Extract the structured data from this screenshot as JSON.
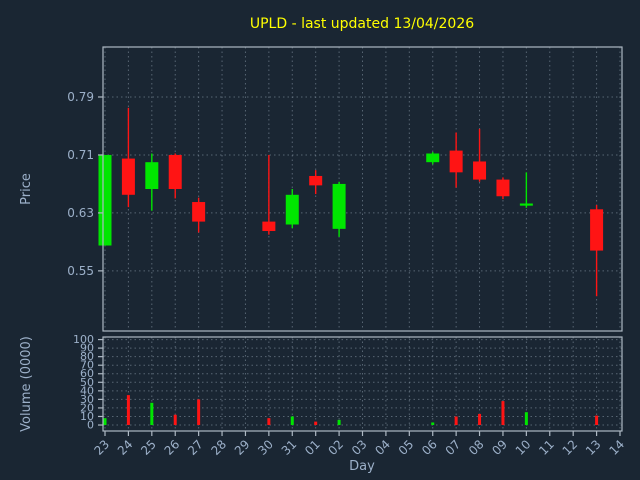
{
  "chart_data": {
    "type": "candlestick",
    "title": "UPLD - last updated 13/04/2026",
    "xlabel": "Day",
    "grid": true,
    "legend": "none",
    "price_axis": {
      "label": "Price",
      "ticks": [
        0.55,
        0.63,
        0.71,
        0.79
      ],
      "min": 0.467,
      "max": 0.859
    },
    "volume_axis": {
      "label": "Volume (0000)",
      "ticks": [
        0,
        10,
        20,
        30,
        40,
        50,
        60,
        70,
        80,
        90,
        100
      ],
      "min": -7,
      "max": 103
    },
    "x_labels": [
      "23",
      "24",
      "25",
      "26",
      "27",
      "28",
      "29",
      "30",
      "31",
      "01",
      "02",
      "03",
      "04",
      "05",
      "06",
      "07",
      "08",
      "09",
      "10",
      "11",
      "12",
      "13",
      "14"
    ],
    "colors": {
      "background": "#1a2633",
      "up": "#00e600",
      "down": "#ff1414",
      "title": "#ffff00",
      "axis_text": "#9cb0c9",
      "grid": "#8b99a8",
      "spine": "#aeb9c4"
    },
    "candles": [
      {
        "day": "23",
        "open": 0.585,
        "high": 0.71,
        "low": 0.585,
        "close": 0.71,
        "volume": 8
      },
      {
        "day": "24",
        "open": 0.705,
        "high": 0.775,
        "low": 0.638,
        "close": 0.655,
        "volume": 35
      },
      {
        "day": "25",
        "open": 0.663,
        "high": 0.712,
        "low": 0.633,
        "close": 0.7,
        "volume": 26
      },
      {
        "day": "26",
        "open": 0.71,
        "high": 0.712,
        "low": 0.65,
        "close": 0.663,
        "volume": 12
      },
      {
        "day": "27",
        "open": 0.645,
        "high": 0.651,
        "low": 0.603,
        "close": 0.618,
        "volume": 30
      },
      {
        "day": "30",
        "open": 0.618,
        "high": 0.71,
        "low": 0.6,
        "close": 0.605,
        "volume": 8
      },
      {
        "day": "31",
        "open": 0.614,
        "high": 0.663,
        "low": 0.609,
        "close": 0.655,
        "volume": 10
      },
      {
        "day": "01",
        "open": 0.681,
        "high": 0.689,
        "low": 0.656,
        "close": 0.668,
        "volume": 4
      },
      {
        "day": "02",
        "open": 0.608,
        "high": 0.673,
        "low": 0.597,
        "close": 0.67,
        "volume": 6
      },
      {
        "day": "06",
        "open": 0.7,
        "high": 0.714,
        "low": 0.697,
        "close": 0.712,
        "volume": 3
      },
      {
        "day": "07",
        "open": 0.716,
        "high": 0.741,
        "low": 0.665,
        "close": 0.686,
        "volume": 10
      },
      {
        "day": "08",
        "open": 0.701,
        "high": 0.746,
        "low": 0.673,
        "close": 0.676,
        "volume": 13
      },
      {
        "day": "09",
        "open": 0.676,
        "high": 0.679,
        "low": 0.649,
        "close": 0.653,
        "volume": 28
      },
      {
        "day": "10",
        "open": 0.64,
        "high": 0.686,
        "low": 0.637,
        "close": 0.643,
        "volume": 15
      },
      {
        "day": "13",
        "open": 0.635,
        "high": 0.641,
        "low": 0.515,
        "close": 0.578,
        "volume": 11
      }
    ]
  }
}
